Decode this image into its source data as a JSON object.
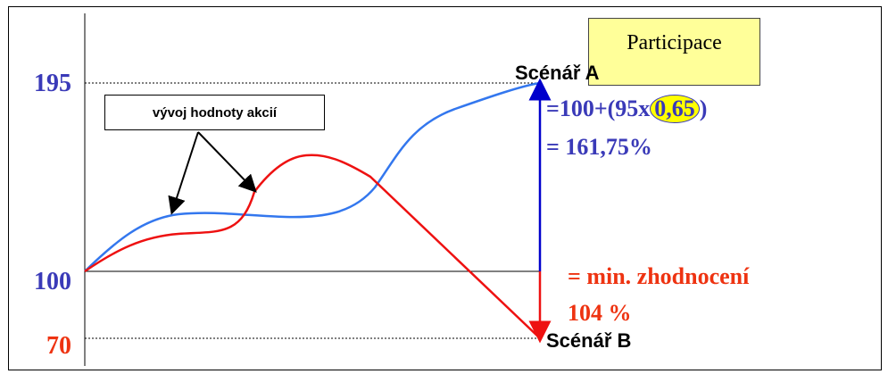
{
  "chart_data": {
    "type": "line",
    "y_levels": [
      {
        "value": 195,
        "label": "195",
        "color": "#3a3ab8"
      },
      {
        "value": 100,
        "label": "100",
        "color": "#3a3ab8"
      },
      {
        "value": 70,
        "label": "70",
        "color": "#ee3311"
      }
    ],
    "series": [
      {
        "color": "#3377ee"
      },
      {
        "color": "#ee1111"
      }
    ],
    "legend_text": "vývoj hodnoty akcií"
  },
  "scenarios": {
    "a_label": "Scénář A",
    "b_label": "Scénář B"
  },
  "formula": {
    "prefix": "=100+(95x",
    "participation": "0,65",
    "suffix": ")",
    "result": "= 161,75%"
  },
  "minimum": {
    "line1": "= min. zhodnocení",
    "line2": "104 %"
  },
  "callout": {
    "label": "Participace"
  },
  "colors": {
    "blue_text": "#3a3ab8",
    "red_text": "#ee3311",
    "arrow_blue": "#0000cc",
    "arrow_red": "#ee1111",
    "callout_bg": "#ffff99"
  }
}
